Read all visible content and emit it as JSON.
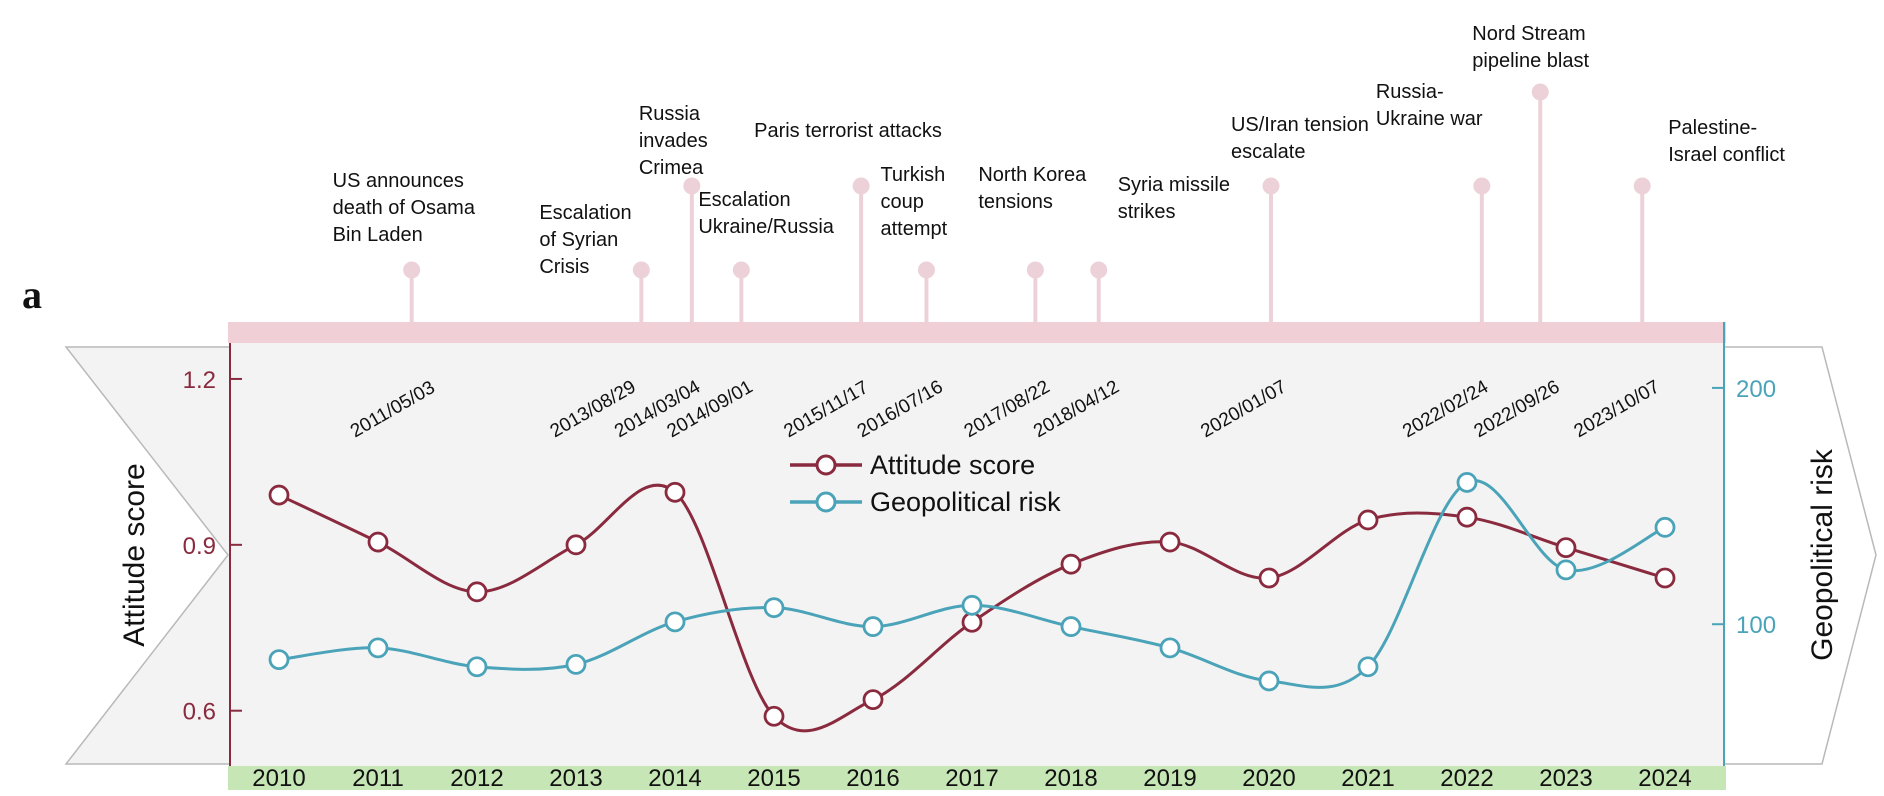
{
  "chart_data": {
    "type": "line",
    "panel_label": "a",
    "categories": [
      "2010",
      "2011",
      "2012",
      "2013",
      "2014",
      "2015",
      "2016",
      "2017",
      "2018",
      "2019",
      "2020",
      "2021",
      "2022",
      "2023",
      "2024"
    ],
    "series": [
      {
        "name": "Attitude score",
        "axis": "left",
        "color": "#8a2a3e",
        "values": [
          0.99,
          0.905,
          0.815,
          0.9,
          0.995,
          0.59,
          0.62,
          0.76,
          0.865,
          0.905,
          0.84,
          0.945,
          0.95,
          0.895,
          0.84
        ]
      },
      {
        "name": "Geopolitical risk",
        "axis": "right",
        "color": "#4aa3b8",
        "values": [
          85,
          90,
          82,
          83,
          101,
          107,
          99,
          108,
          99,
          90,
          76,
          82,
          160,
          123,
          141
        ]
      }
    ],
    "left_axis": {
      "label": "Attitude score",
      "ticks": [
        "1.2",
        "0.9",
        "0.6"
      ],
      "tick_values": [
        1.2,
        0.9,
        0.6
      ],
      "ylim": [
        0.5,
        1.265
      ]
    },
    "right_axis": {
      "label": "Geopolitical risk",
      "ticks": [
        "200",
        "100"
      ],
      "tick_values": [
        200,
        100
      ],
      "ylim": [
        40,
        219
      ]
    },
    "legend": {
      "position": "top-center",
      "entries": [
        "Attitude score",
        "Geopolitical risk"
      ]
    },
    "events": [
      {
        "date": "2011/05/03",
        "t": 2011.34,
        "stem": "medium",
        "label_lines": [
          "US announces",
          "death of Osama",
          "Bin Laden"
        ]
      },
      {
        "date": "2013/08/29",
        "t": 2013.66,
        "stem": "medium",
        "label_lines": [
          "Escalation",
          "of Syrian",
          "Crisis"
        ]
      },
      {
        "date": "2014/03/04",
        "t": 2014.17,
        "stem": "tall",
        "label_lines": [
          "Russia",
          "invades",
          "Crimea"
        ]
      },
      {
        "date": "2014/09/01",
        "t": 2014.67,
        "stem": "medium",
        "label_lines": [
          "Escalation",
          "Ukraine/Russia"
        ]
      },
      {
        "date": "2015/11/17",
        "t": 2015.88,
        "stem": "tall",
        "label_lines": [
          "Paris terrorist attacks"
        ]
      },
      {
        "date": "2016/07/16",
        "t": 2016.54,
        "stem": "medium",
        "label_lines": [
          "Turkish",
          "coup",
          "attempt"
        ]
      },
      {
        "date": "2017/08/22",
        "t": 2017.64,
        "stem": "medium",
        "label_lines": [
          "North Korea",
          "tensions"
        ]
      },
      {
        "date": "2018/04/12",
        "t": 2018.28,
        "stem": "medium",
        "label_lines": [
          "Syria missile",
          "strikes"
        ]
      },
      {
        "date": "2020/01/07",
        "t": 2020.02,
        "stem": "tall",
        "label_lines": [
          "US/Iran tension",
          "escalate"
        ]
      },
      {
        "date": "2022/02/24",
        "t": 2022.15,
        "stem": "tall",
        "label_lines": [
          "Russia-",
          "Ukraine war"
        ]
      },
      {
        "date": "2022/09/26",
        "t": 2022.74,
        "stem": "tallest",
        "label_lines": [
          "Nord  Stream",
          "pipeline blast"
        ]
      },
      {
        "date": "2023/10/07",
        "t": 2023.77,
        "stem": "tall",
        "label_lines": [
          "Palestine-",
          "Israel conflict"
        ]
      }
    ]
  },
  "colors": {
    "attitude": "#8a2a3e",
    "risk": "#4aa3b8",
    "event_pink": "#ecd2d8",
    "timeline_bar": "#f0cfd7",
    "year_bar": "#c6e6b5",
    "panel_bg": "#f3f3f3",
    "arrow_border": "#b9b9b9"
  }
}
